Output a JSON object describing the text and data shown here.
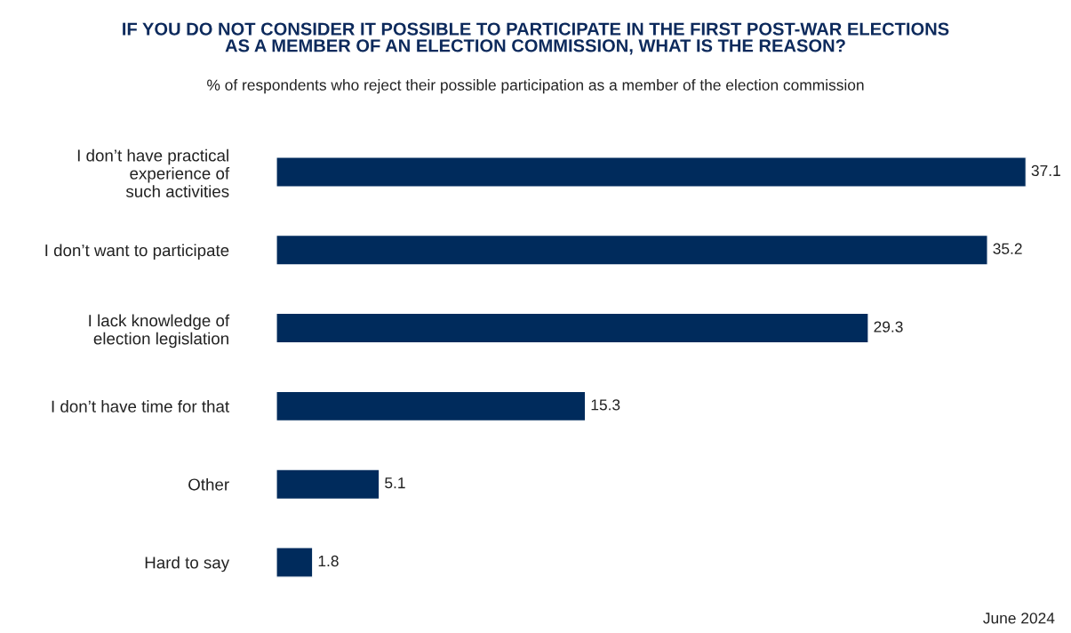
{
  "chart_data": {
    "type": "bar",
    "orientation": "horizontal",
    "title": "IF YOU DO NOT CONSIDER IT POSSIBLE TO PARTICIPATE IN THE FIRST POST-WAR ELECTIONS\nAS A MEMBER OF AN ELECTION COMMISSION, WHAT IS THE REASON?",
    "subtitle": "% of respondents who reject their possible participation as a member of the election commission",
    "categories": [
      "I don’t have practical\nexperience of\nsuch activities",
      "I don’t want to participate",
      "I lack knowledge of\nelection legislation",
      "I don’t have time for that",
      "Other",
      "Hard to say"
    ],
    "values": [
      37.1,
      35.2,
      29.3,
      15.3,
      5.1,
      1.8
    ],
    "color": "#002b5c",
    "data_labels": true,
    "annotations": [
      "June 2024"
    ]
  }
}
